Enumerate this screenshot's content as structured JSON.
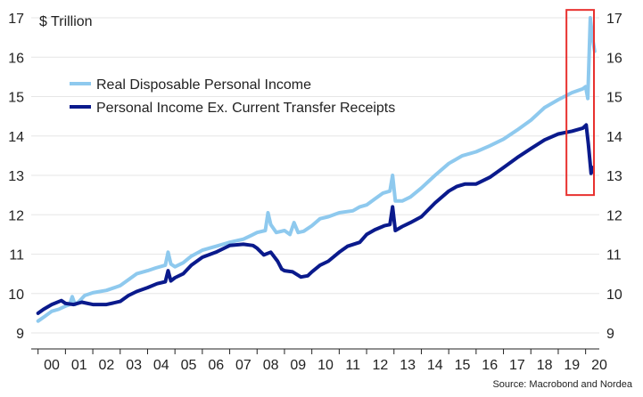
{
  "chart_data": {
    "type": "line",
    "unit_label": "$ Trillion",
    "x_tick_labels": [
      "00",
      "01",
      "02",
      "03",
      "04",
      "05",
      "06",
      "07",
      "08",
      "09",
      "10",
      "11",
      "12",
      "13",
      "14",
      "15",
      "16",
      "17",
      "18",
      "19",
      "20"
    ],
    "y_tick_labels": [
      "9",
      "10",
      "11",
      "12",
      "13",
      "14",
      "15",
      "16",
      "17"
    ],
    "ylim": [
      9,
      17
    ],
    "xlim": [
      1999.75,
      2020.5
    ],
    "grid": "horizontal",
    "legend_position": "upper-left",
    "source": "Source: Macrobond and Nordea",
    "colors": {
      "series1": "#8ec9ee",
      "series2": "#0a1a8c",
      "highlight": "#e8312f",
      "grid": "#e6e6e6"
    },
    "highlight_box": {
      "x_range": [
        2019.3,
        2020.75
      ],
      "y_range": [
        12.5,
        17.2
      ]
    },
    "series": [
      {
        "name": "Real Disposable Personal Income",
        "points": [
          [
            2000.0,
            9.3
          ],
          [
            2000.25,
            9.42
          ],
          [
            2000.5,
            9.55
          ],
          [
            2000.75,
            9.6
          ],
          [
            2001.0,
            9.68
          ],
          [
            2001.15,
            9.72
          ],
          [
            2001.25,
            9.92
          ],
          [
            2001.35,
            9.72
          ],
          [
            2001.5,
            9.8
          ],
          [
            2001.7,
            9.95
          ],
          [
            2002.0,
            10.02
          ],
          [
            2002.5,
            10.08
          ],
          [
            2003.0,
            10.2
          ],
          [
            2003.3,
            10.35
          ],
          [
            2003.6,
            10.5
          ],
          [
            2004.0,
            10.58
          ],
          [
            2004.3,
            10.65
          ],
          [
            2004.65,
            10.72
          ],
          [
            2004.75,
            11.05
          ],
          [
            2004.85,
            10.75
          ],
          [
            2005.0,
            10.68
          ],
          [
            2005.3,
            10.78
          ],
          [
            2005.6,
            10.95
          ],
          [
            2006.0,
            11.1
          ],
          [
            2006.5,
            11.2
          ],
          [
            2007.0,
            11.3
          ],
          [
            2007.5,
            11.38
          ],
          [
            2007.8,
            11.48
          ],
          [
            2008.0,
            11.55
          ],
          [
            2008.3,
            11.6
          ],
          [
            2008.4,
            12.05
          ],
          [
            2008.5,
            11.75
          ],
          [
            2008.7,
            11.55
          ],
          [
            2009.0,
            11.6
          ],
          [
            2009.2,
            11.5
          ],
          [
            2009.35,
            11.8
          ],
          [
            2009.5,
            11.55
          ],
          [
            2009.7,
            11.58
          ],
          [
            2010.0,
            11.72
          ],
          [
            2010.3,
            11.9
          ],
          [
            2010.6,
            11.95
          ],
          [
            2011.0,
            12.05
          ],
          [
            2011.5,
            12.1
          ],
          [
            2011.75,
            12.2
          ],
          [
            2012.0,
            12.25
          ],
          [
            2012.3,
            12.4
          ],
          [
            2012.6,
            12.55
          ],
          [
            2012.85,
            12.6
          ],
          [
            2012.95,
            13.0
          ],
          [
            2013.05,
            12.35
          ],
          [
            2013.3,
            12.35
          ],
          [
            2013.6,
            12.45
          ],
          [
            2014.0,
            12.68
          ],
          [
            2014.5,
            13.0
          ],
          [
            2015.0,
            13.3
          ],
          [
            2015.5,
            13.5
          ],
          [
            2016.0,
            13.6
          ],
          [
            2016.5,
            13.75
          ],
          [
            2017.0,
            13.92
          ],
          [
            2017.5,
            14.15
          ],
          [
            2018.0,
            14.4
          ],
          [
            2018.5,
            14.72
          ],
          [
            2019.0,
            14.92
          ],
          [
            2019.5,
            15.1
          ],
          [
            2019.9,
            15.2
          ],
          [
            2020.0,
            15.25
          ],
          [
            2020.08,
            14.95
          ],
          [
            2020.17,
            17.0
          ],
          [
            2020.25,
            16.5
          ],
          [
            2020.33,
            16.15
          ]
        ]
      },
      {
        "name": "Personal Income Ex. Current Transfer Receipts",
        "points": [
          [
            2000.0,
            9.5
          ],
          [
            2000.2,
            9.6
          ],
          [
            2000.5,
            9.72
          ],
          [
            2000.85,
            9.82
          ],
          [
            2001.0,
            9.75
          ],
          [
            2001.3,
            9.72
          ],
          [
            2001.6,
            9.78
          ],
          [
            2002.0,
            9.72
          ],
          [
            2002.5,
            9.72
          ],
          [
            2003.0,
            9.8
          ],
          [
            2003.3,
            9.95
          ],
          [
            2003.6,
            10.05
          ],
          [
            2004.0,
            10.15
          ],
          [
            2004.35,
            10.25
          ],
          [
            2004.65,
            10.3
          ],
          [
            2004.75,
            10.58
          ],
          [
            2004.85,
            10.32
          ],
          [
            2005.0,
            10.4
          ],
          [
            2005.3,
            10.5
          ],
          [
            2005.6,
            10.72
          ],
          [
            2006.0,
            10.92
          ],
          [
            2006.5,
            11.05
          ],
          [
            2007.0,
            11.22
          ],
          [
            2007.5,
            11.25
          ],
          [
            2007.85,
            11.22
          ],
          [
            2008.0,
            11.15
          ],
          [
            2008.25,
            10.98
          ],
          [
            2008.5,
            11.05
          ],
          [
            2008.75,
            10.82
          ],
          [
            2008.9,
            10.62
          ],
          [
            2009.0,
            10.58
          ],
          [
            2009.3,
            10.55
          ],
          [
            2009.6,
            10.42
          ],
          [
            2009.85,
            10.45
          ],
          [
            2010.0,
            10.55
          ],
          [
            2010.3,
            10.72
          ],
          [
            2010.6,
            10.82
          ],
          [
            2011.0,
            11.05
          ],
          [
            2011.3,
            11.2
          ],
          [
            2011.75,
            11.3
          ],
          [
            2012.0,
            11.5
          ],
          [
            2012.3,
            11.62
          ],
          [
            2012.65,
            11.72
          ],
          [
            2012.85,
            11.75
          ],
          [
            2012.95,
            12.2
          ],
          [
            2013.05,
            11.6
          ],
          [
            2013.3,
            11.7
          ],
          [
            2013.6,
            11.8
          ],
          [
            2014.0,
            11.95
          ],
          [
            2014.5,
            12.3
          ],
          [
            2015.0,
            12.6
          ],
          [
            2015.3,
            12.72
          ],
          [
            2015.6,
            12.78
          ],
          [
            2016.0,
            12.78
          ],
          [
            2016.5,
            12.95
          ],
          [
            2017.0,
            13.2
          ],
          [
            2017.5,
            13.45
          ],
          [
            2018.0,
            13.68
          ],
          [
            2018.5,
            13.9
          ],
          [
            2019.0,
            14.05
          ],
          [
            2019.5,
            14.12
          ],
          [
            2019.9,
            14.2
          ],
          [
            2020.02,
            14.28
          ],
          [
            2020.1,
            13.8
          ],
          [
            2020.2,
            13.05
          ],
          [
            2020.27,
            13.2
          ]
        ]
      }
    ]
  }
}
